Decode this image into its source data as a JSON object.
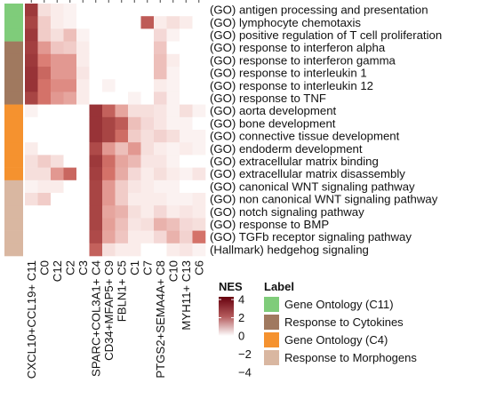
{
  "chart_data": {
    "type": "heatmap",
    "rows": [
      {
        "label": "(GO) antigen processing and presentation",
        "group": 0
      },
      {
        "label": "(GO) lymphocyte chemotaxis",
        "group": 0
      },
      {
        "label": "(GO) positive regulation of T cell proliferation",
        "group": 0
      },
      {
        "label": "(GO) response to interferon alpha",
        "group": 1
      },
      {
        "label": "(GO) response to interferon gamma",
        "group": 1
      },
      {
        "label": "(GO) response to interleukin 1",
        "group": 1
      },
      {
        "label": "(GO) response to interleukin 12",
        "group": 1
      },
      {
        "label": "(GO) response to TNF",
        "group": 1
      },
      {
        "label": "(GO) aorta development",
        "group": 2
      },
      {
        "label": "(GO) bone development",
        "group": 2
      },
      {
        "label": "(GO) connective tissue development",
        "group": 2
      },
      {
        "label": "(GO) endoderm development",
        "group": 2
      },
      {
        "label": "(GO) extracellular matrix binding",
        "group": 2
      },
      {
        "label": "(GO) extracellular matrix disassembly",
        "group": 2
      },
      {
        "label": "(GO) canonical WNT signaling pathway",
        "group": 3
      },
      {
        "label": "(GO) non canonical WNT signaling pathway",
        "group": 3
      },
      {
        "label": "(GO) notch signaling pathway",
        "group": 3
      },
      {
        "label": "(GO) response to BMP",
        "group": 3
      },
      {
        "label": "(GO) TGFb receptor signaling pathway",
        "group": 3
      },
      {
        "label": "(Hallmark) hedgehog signaling",
        "group": 3
      }
    ],
    "columns": [
      {
        "id": "C11",
        "label": "CXCL10+CCL19+ C11"
      },
      {
        "id": "C0",
        "label": "C0"
      },
      {
        "id": "C12",
        "label": "C12"
      },
      {
        "id": "C2",
        "label": "C2"
      },
      {
        "id": "C3",
        "label": "C3"
      },
      {
        "id": "C4",
        "label": "SPARC+COL3A1+ C4"
      },
      {
        "id": "C9",
        "label": "CD34+MFAP5+ C9"
      },
      {
        "id": "C5",
        "label": "FBLN1+ C5"
      },
      {
        "id": "C1",
        "label": "C1"
      },
      {
        "id": "C7",
        "label": "C7"
      },
      {
        "id": "C8",
        "label": "PTGS2+SEMA4A+ C8"
      },
      {
        "id": "C10",
        "label": "C10"
      },
      {
        "id": "C13",
        "label": "MYH11+ C13"
      },
      {
        "id": "C6",
        "label": "C6"
      }
    ],
    "values": [
      [
        3.2,
        0.5,
        0.3,
        0.2,
        0,
        0,
        0,
        0,
        0,
        0,
        0,
        0,
        0,
        0
      ],
      [
        3.0,
        0.8,
        0.3,
        0.2,
        0,
        0,
        0,
        0,
        0,
        2.6,
        0.3,
        0.5,
        0.3,
        0
      ],
      [
        3.2,
        0.8,
        0.5,
        1.0,
        0.2,
        0,
        0,
        0,
        0,
        0,
        0.6,
        0.2,
        0,
        0
      ],
      [
        3.1,
        1.6,
        0.9,
        0.8,
        0.3,
        0,
        0,
        0,
        0,
        0,
        0.9,
        0,
        0,
        0
      ],
      [
        3.2,
        2.0,
        1.6,
        1.6,
        0.3,
        0,
        0,
        0,
        0,
        0,
        1.0,
        0.3,
        0,
        0
      ],
      [
        3.3,
        2.4,
        1.6,
        1.6,
        0.4,
        0,
        0,
        0,
        0,
        0,
        1.0,
        0.2,
        0,
        0
      ],
      [
        3.3,
        2.2,
        1.8,
        1.8,
        0.3,
        0,
        0.2,
        0,
        0,
        0,
        0.3,
        0.2,
        0,
        0
      ],
      [
        3.0,
        2.2,
        1.6,
        1.4,
        0.3,
        0,
        0,
        0,
        0.2,
        0,
        0.6,
        0.2,
        0,
        0
      ],
      [
        0.2,
        0,
        0,
        0,
        0,
        3.3,
        2.5,
        1.4,
        0.5,
        0.5,
        0.4,
        0.2,
        0.5,
        0.2
      ],
      [
        0,
        0,
        0,
        0,
        0,
        3.3,
        3.0,
        2.6,
        1.0,
        0.6,
        0.4,
        0.2,
        0.2,
        0
      ],
      [
        0,
        0,
        0,
        0,
        0,
        3.3,
        3.0,
        2.3,
        0.8,
        0.5,
        0.7,
        0.5,
        0.2,
        0.2
      ],
      [
        0.3,
        0,
        0,
        0,
        0,
        2.9,
        1.6,
        1.0,
        1.6,
        0.5,
        0.3,
        0.2,
        0.3,
        0.2
      ],
      [
        0.5,
        0.8,
        0.5,
        0,
        0,
        3.2,
        2.3,
        1.4,
        1.1,
        0.4,
        0.4,
        0.2,
        0,
        0
      ],
      [
        0.5,
        0.5,
        1.6,
        2.4,
        0,
        3.1,
        2.2,
        1.3,
        0.6,
        0.3,
        0.5,
        0.3,
        0.2,
        0.4
      ],
      [
        0.2,
        0.3,
        0.3,
        0,
        0,
        3.0,
        1.6,
        0.8,
        0.4,
        0.3,
        0.2,
        0.2,
        0,
        0
      ],
      [
        0.5,
        0.8,
        0,
        0,
        0,
        3.0,
        1.6,
        0.8,
        0.3,
        0.3,
        0.3,
        0.2,
        0.2,
        0.3
      ],
      [
        0,
        0,
        0,
        0,
        0,
        3.0,
        1.4,
        1.2,
        0.5,
        0.3,
        0.6,
        0.3,
        0.4,
        0.3
      ],
      [
        0,
        0,
        0,
        0,
        0,
        3.0,
        1.5,
        1.0,
        0.4,
        0.5,
        1.2,
        1.0,
        0.6,
        0.5
      ],
      [
        0,
        0,
        0,
        0,
        0,
        2.9,
        1.4,
        0.9,
        0.3,
        0.3,
        0.6,
        1.2,
        0.7,
        2.2
      ],
      [
        0,
        0,
        0,
        0,
        0,
        2.5,
        0.5,
        0.3,
        0.3,
        0,
        0,
        0.3,
        0.4,
        0.2
      ]
    ],
    "color_scale": {
      "low": "#ffffff",
      "high": "#67000d",
      "min": 0,
      "max": 4.2
    },
    "legend_nes": {
      "title": "NES",
      "breaks": [
        4,
        2,
        0,
        -2,
        -4
      ],
      "break_labels": [
        "4",
        "2",
        "0",
        "−2",
        "−4"
      ]
    },
    "legend_label": {
      "title": "Label",
      "items": [
        {
          "label": "Gene Ontology (C11)",
          "color": "#7fcc7a"
        },
        {
          "label": "Response to Cytokines",
          "color": "#a0795f"
        },
        {
          "label": "Gene Ontology (C4)",
          "color": "#f5922f"
        },
        {
          "label": "Response to Morphogens",
          "color": "#d9b7a1"
        }
      ]
    }
  }
}
